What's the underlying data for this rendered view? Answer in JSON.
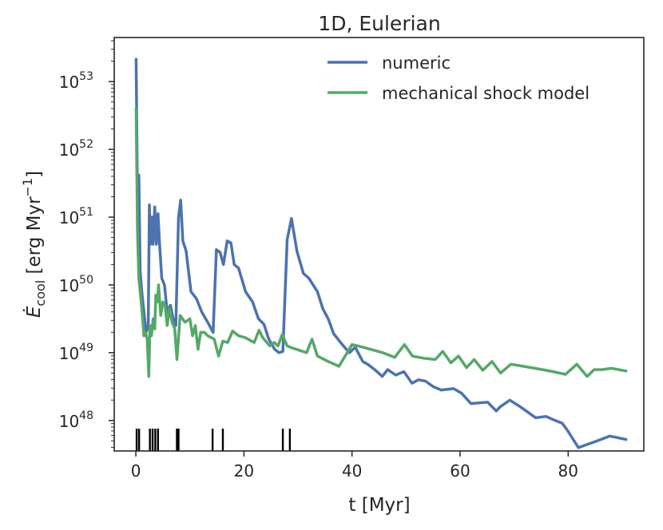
{
  "chart_data": {
    "type": "line",
    "title": "1D, Eulerian",
    "xlabel": "t [Myr]",
    "ylabel": "Ė_cool [erg Myr⁻¹]",
    "ylabel_parts": {
      "symbol": "Ė",
      "subscript": "cool",
      "unit": "[erg Myr",
      "exponent": "−1",
      "close": "]"
    },
    "xlim": [
      -4,
      94
    ],
    "ylim_log10": [
      47.55,
      53.65
    ],
    "yscale": "log",
    "grid": false,
    "legend_position": "top-right",
    "x_ticks": [
      {
        "value": 0,
        "label": "0"
      },
      {
        "value": 20,
        "label": "20"
      },
      {
        "value": 40,
        "label": "40"
      },
      {
        "value": 60,
        "label": "60"
      },
      {
        "value": 80,
        "label": "80"
      }
    ],
    "y_ticks": [
      {
        "log10": 48,
        "base": "10",
        "exp": "48"
      },
      {
        "log10": 49,
        "base": "10",
        "exp": "49"
      },
      {
        "log10": 50,
        "base": "10",
        "exp": "50"
      },
      {
        "log10": 51,
        "base": "10",
        "exp": "51"
      },
      {
        "log10": 52,
        "base": "10",
        "exp": "52"
      },
      {
        "log10": 53,
        "base": "10",
        "exp": "53"
      }
    ],
    "series": [
      {
        "name": "numeric",
        "color": "#4c72b0",
        "points_log10": [
          [
            0.05,
            53.33
          ],
          [
            0.3,
            51.35
          ],
          [
            0.55,
            51.62
          ],
          [
            0.8,
            50.2
          ],
          [
            1.1,
            49.9
          ],
          [
            1.5,
            49.6
          ],
          [
            1.9,
            49.3
          ],
          [
            2.3,
            49.4
          ],
          [
            2.5,
            51.18
          ],
          [
            2.7,
            50.6
          ],
          [
            3.0,
            51.0
          ],
          [
            3.2,
            50.6
          ],
          [
            3.5,
            51.15
          ],
          [
            3.8,
            50.6
          ],
          [
            4.1,
            51.05
          ],
          [
            4.4,
            50.6
          ],
          [
            4.8,
            50.1
          ],
          [
            5.3,
            50.0
          ],
          [
            5.8,
            49.6
          ],
          [
            6.4,
            49.7
          ],
          [
            6.9,
            49.5
          ],
          [
            7.4,
            49.4
          ],
          [
            7.9,
            51.0
          ],
          [
            8.3,
            51.25
          ],
          [
            8.7,
            50.65
          ],
          [
            9.3,
            50.5
          ],
          [
            10.2,
            49.9
          ],
          [
            11.2,
            49.8
          ],
          [
            12.2,
            49.6
          ],
          [
            13.3,
            49.45
          ],
          [
            14.3,
            49.3
          ],
          [
            14.9,
            50.52
          ],
          [
            15.6,
            50.48
          ],
          [
            16.2,
            50.3
          ],
          [
            16.9,
            50.65
          ],
          [
            17.6,
            50.62
          ],
          [
            18.2,
            50.3
          ],
          [
            19.0,
            50.25
          ],
          [
            20.3,
            49.9
          ],
          [
            21.6,
            49.75
          ],
          [
            22.7,
            49.5
          ],
          [
            23.7,
            49.42
          ],
          [
            24.6,
            49.2
          ],
          [
            25.7,
            49.05
          ],
          [
            26.5,
            49.0
          ],
          [
            27.2,
            49.02
          ],
          [
            28.0,
            50.67
          ],
          [
            28.8,
            50.98
          ],
          [
            29.8,
            50.5
          ],
          [
            31.0,
            50.17
          ],
          [
            32.0,
            50.1
          ],
          [
            33.6,
            49.9
          ],
          [
            34.6,
            49.65
          ],
          [
            35.6,
            49.5
          ],
          [
            36.6,
            49.28
          ],
          [
            38.2,
            49.12
          ],
          [
            39.5,
            49.0
          ],
          [
            40.6,
            49.08
          ],
          [
            42.0,
            48.87
          ],
          [
            43.1,
            48.82
          ],
          [
            44.2,
            48.75
          ],
          [
            45.6,
            48.65
          ],
          [
            46.6,
            48.75
          ],
          [
            48.1,
            48.67
          ],
          [
            49.6,
            48.72
          ],
          [
            51.1,
            48.55
          ],
          [
            52.3,
            48.6
          ],
          [
            53.6,
            48.58
          ],
          [
            55.0,
            48.5
          ],
          [
            56.5,
            48.45
          ],
          [
            57.7,
            48.46
          ],
          [
            58.8,
            48.47
          ],
          [
            60.3,
            48.4
          ],
          [
            62.0,
            48.25
          ],
          [
            63.5,
            48.26
          ],
          [
            65.1,
            48.27
          ],
          [
            66.7,
            48.14
          ],
          [
            67.4,
            48.2
          ],
          [
            69.2,
            48.3
          ],
          [
            71.0,
            48.21
          ],
          [
            72.4,
            48.13
          ],
          [
            74.0,
            48.04
          ],
          [
            75.9,
            48.06
          ],
          [
            77.6,
            48.0
          ],
          [
            78.9,
            47.96
          ],
          [
            79.9,
            47.85
          ],
          [
            81.9,
            47.6
          ],
          [
            83.3,
            47.64
          ],
          [
            85.4,
            47.7
          ],
          [
            87.7,
            47.77
          ],
          [
            90.7,
            47.72
          ]
        ]
      },
      {
        "name": "mechanical shock model",
        "color": "#55a868",
        "points_log10": [
          [
            0.05,
            52.6
          ],
          [
            0.3,
            50.8
          ],
          [
            0.55,
            50.1
          ],
          [
            0.8,
            49.9
          ],
          [
            1.1,
            49.65
          ],
          [
            1.5,
            49.25
          ],
          [
            1.8,
            49.3
          ],
          [
            2.1,
            49.2
          ],
          [
            2.4,
            48.65
          ],
          [
            2.6,
            49.4
          ],
          [
            2.9,
            49.25
          ],
          [
            3.2,
            49.5
          ],
          [
            3.5,
            49.35
          ],
          [
            3.7,
            49.85
          ],
          [
            4.0,
            49.75
          ],
          [
            4.2,
            50.0
          ],
          [
            4.6,
            49.55
          ],
          [
            5.0,
            49.75
          ],
          [
            5.4,
            49.7
          ],
          [
            5.8,
            49.4
          ],
          [
            6.2,
            49.65
          ],
          [
            6.7,
            49.45
          ],
          [
            7.2,
            49.35
          ],
          [
            7.6,
            48.9
          ],
          [
            8.2,
            49.55
          ],
          [
            9.1,
            49.45
          ],
          [
            10.0,
            49.5
          ],
          [
            10.5,
            49.25
          ],
          [
            11.0,
            49.4
          ],
          [
            11.5,
            49.05
          ],
          [
            12.0,
            49.3
          ],
          [
            12.7,
            49.3
          ],
          [
            13.3,
            49.25
          ],
          [
            14.5,
            49.2
          ],
          [
            15.3,
            48.95
          ],
          [
            16.1,
            49.17
          ],
          [
            17.0,
            49.15
          ],
          [
            17.9,
            49.32
          ],
          [
            19.0,
            49.25
          ],
          [
            20.3,
            49.22
          ],
          [
            21.9,
            49.15
          ],
          [
            22.8,
            49.33
          ],
          [
            23.5,
            49.22
          ],
          [
            24.8,
            49.1
          ],
          [
            25.6,
            49.15
          ],
          [
            26.3,
            49.1
          ],
          [
            27.1,
            49.27
          ],
          [
            28.0,
            49.1
          ],
          [
            28.9,
            49.07
          ],
          [
            29.7,
            49.05
          ],
          [
            31.6,
            49.0
          ],
          [
            32.6,
            49.2
          ],
          [
            33.6,
            48.95
          ],
          [
            35.6,
            48.87
          ],
          [
            37.6,
            48.8
          ],
          [
            40.0,
            49.12
          ],
          [
            42.1,
            49.08
          ],
          [
            45.7,
            49.0
          ],
          [
            47.9,
            48.93
          ],
          [
            49.7,
            49.12
          ],
          [
            51.2,
            48.95
          ],
          [
            53.2,
            48.92
          ],
          [
            55.4,
            48.9
          ],
          [
            56.8,
            49.02
          ],
          [
            58.3,
            48.85
          ],
          [
            59.7,
            48.95
          ],
          [
            61.2,
            48.78
          ],
          [
            62.6,
            48.9
          ],
          [
            64.2,
            48.74
          ],
          [
            65.9,
            48.87
          ],
          [
            67.5,
            48.7
          ],
          [
            69.4,
            48.83
          ],
          [
            71.7,
            48.8
          ],
          [
            73.8,
            48.77
          ],
          [
            75.9,
            48.74
          ],
          [
            77.8,
            48.71
          ],
          [
            79.5,
            48.68
          ],
          [
            81.6,
            48.83
          ],
          [
            83.5,
            48.65
          ],
          [
            84.8,
            48.75
          ],
          [
            86.2,
            48.75
          ],
          [
            88.0,
            48.77
          ],
          [
            90.7,
            48.73
          ]
        ]
      }
    ],
    "rug_x": [
      0.15,
      0.6,
      2.6,
      3.1,
      3.6,
      4.1,
      7.6,
      7.9,
      14.2,
      16.1,
      27.2,
      28.5
    ]
  }
}
